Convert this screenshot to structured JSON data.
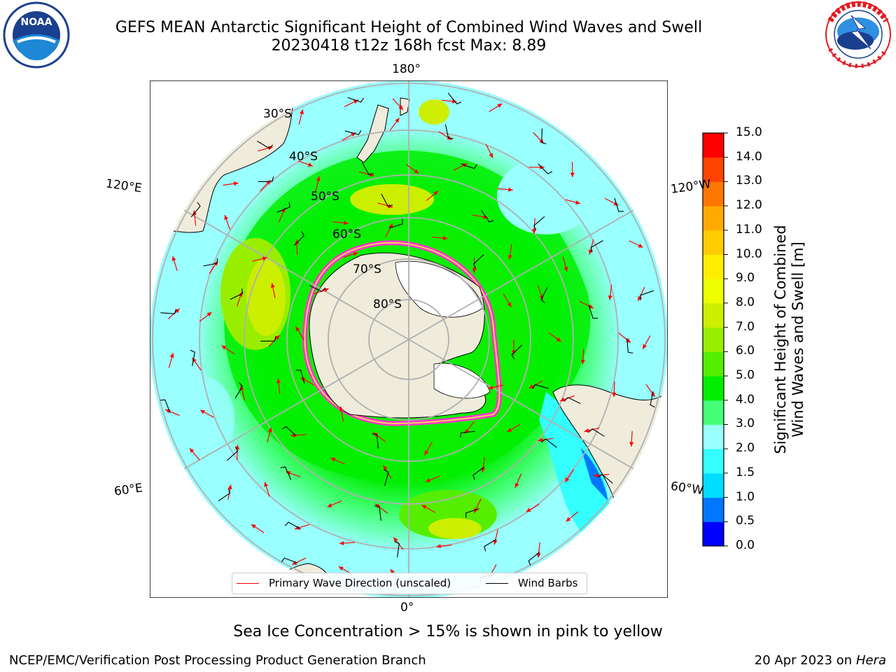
{
  "header": {
    "title_line1": "GEFS MEAN Antarctic Significant Height of Combined Wind Waves and Swell",
    "title_line2": "20230418 t12z 168h fcst   Max: 8.89"
  },
  "logos": {
    "left": {
      "name": "noaa-logo",
      "text": "NOAA",
      "ring_text": "NATIONAL OCEANIC AND ATMOSPHERIC ADMINISTRATION · U.S. DEPARTMENT OF COMMERCE"
    },
    "right": {
      "name": "nws-logo",
      "ring_text": "NATIONAL WEATHER SERVICE"
    }
  },
  "map": {
    "projection": "south-polar-stereographic",
    "longitude_labels": {
      "top": "180°",
      "upper_left": "120°E",
      "upper_right": "120°W",
      "lower_left": "60°E",
      "lower_right": "60°W",
      "bottom": "0°"
    },
    "latitude_labels": [
      "30°S",
      "40°S",
      "50°S",
      "60°S",
      "70°S",
      "80°S"
    ],
    "colors": {
      "land": "#efecdc",
      "ice_shelf": "#ffffff",
      "sea_ice_edge": "#ff33cc",
      "sea_ice_inner": "#ffcc66",
      "graticule": "#b0b0b0",
      "arrow": "#ff0000",
      "barb": "#000000"
    }
  },
  "colorbar": {
    "label_line1": "Significant Height of Combined",
    "label_line2": "Wind Waves and Swell [m]",
    "ticks": [
      "0.0",
      "0.5",
      "1.0",
      "1.5",
      "2.0",
      "3.0",
      "4.0",
      "5.0",
      "6.0",
      "7.0",
      "8.0",
      "9.0",
      "10.0",
      "11.0",
      "12.0",
      "13.0",
      "14.0",
      "15.0"
    ],
    "colors": [
      "#0000ff",
      "#0077ff",
      "#00ddff",
      "#33ffff",
      "#99ffff",
      "#44ff77",
      "#00ee00",
      "#55ee00",
      "#99ee00",
      "#ccee00",
      "#eeff00",
      "#ffee00",
      "#ffcc00",
      "#ffaa00",
      "#ff7700",
      "#ff4400",
      "#ff0000"
    ]
  },
  "legend": {
    "primary_wave": "Primary Wave Direction (unscaled)",
    "wind_barbs": "Wind Barbs"
  },
  "subtitle": "Sea Ice Concentration > 15% is shown in pink to yellow",
  "footer": {
    "left": "NCEP/EMC/Verification Post Processing Product Generation Branch",
    "right_prefix": "20 Apr 2023 on ",
    "right_host": "Hera"
  }
}
